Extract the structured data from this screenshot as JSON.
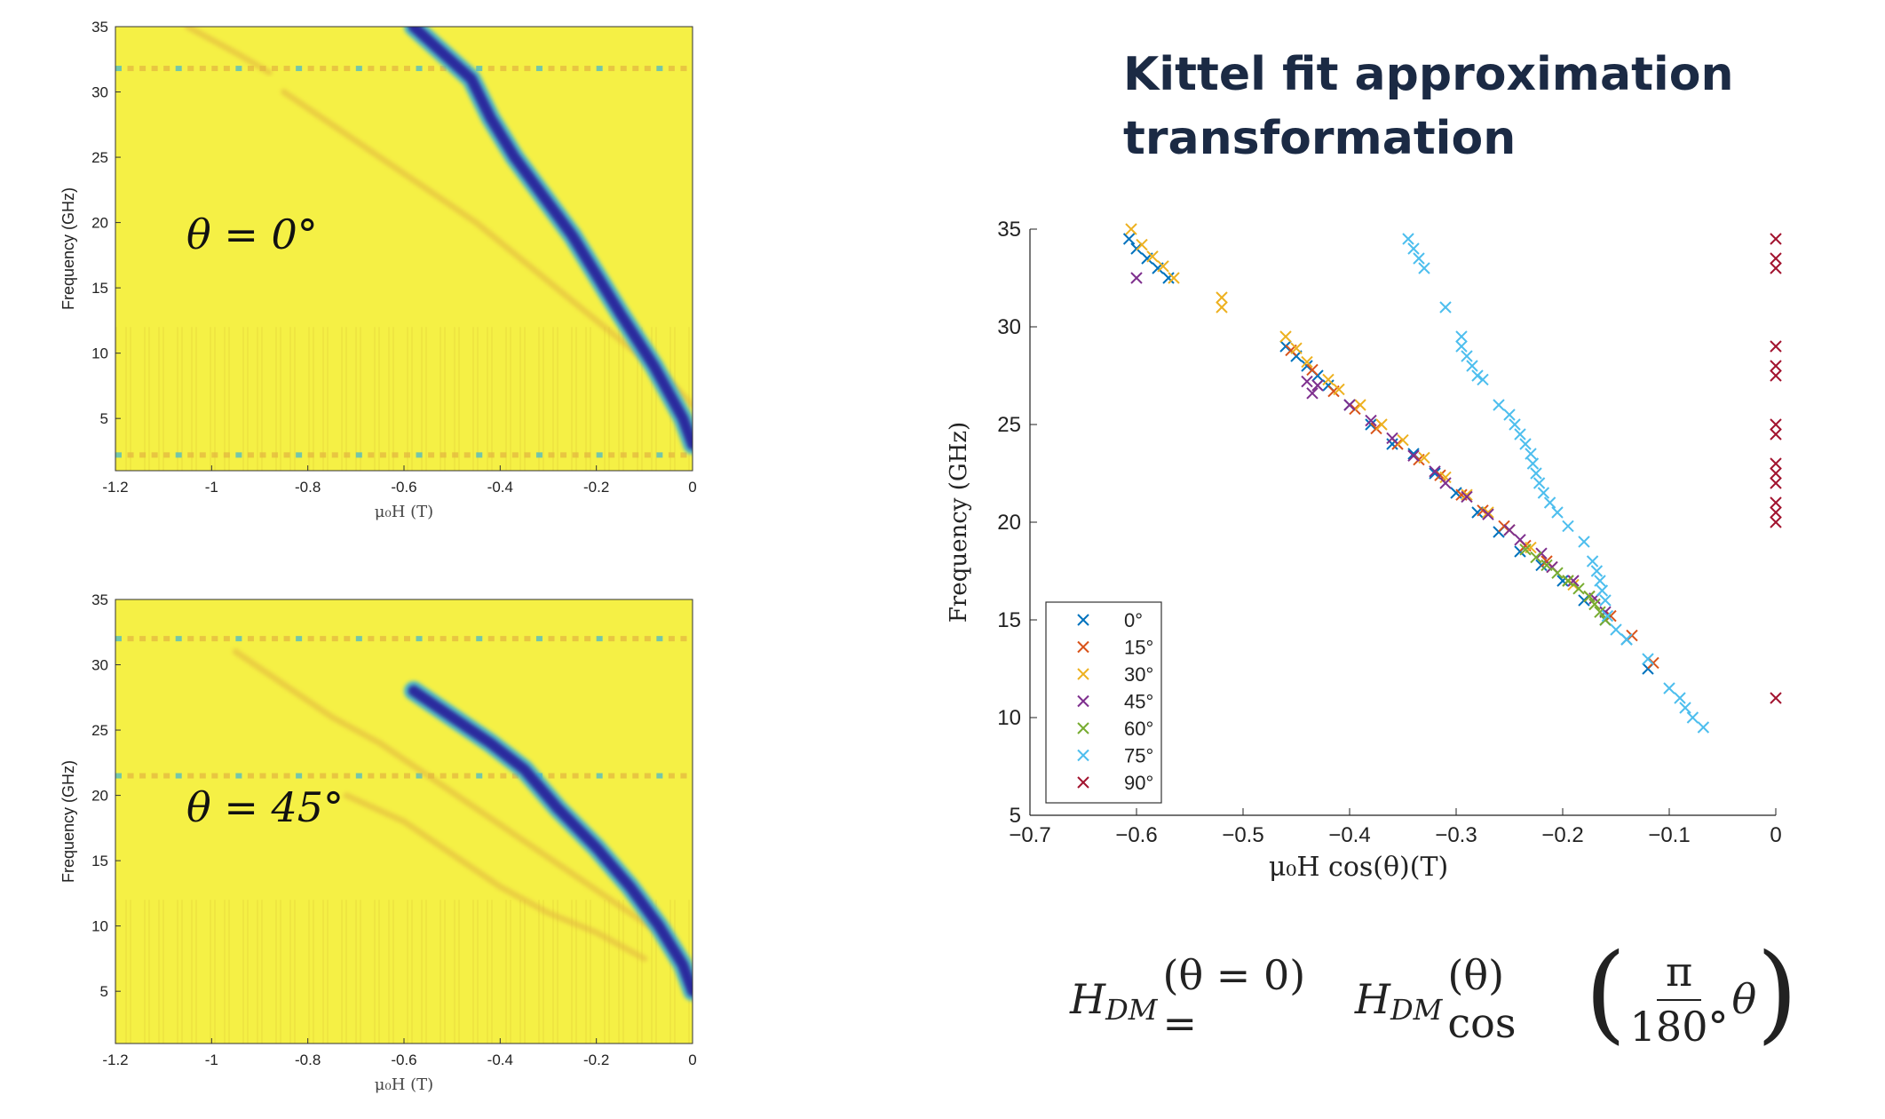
{
  "title": "Kittel fit approximation transformation",
  "formula": {
    "lhs": "H",
    "sub_lhs": "DM",
    "lhs_arg": "(θ = 0) =",
    "rhs": "H",
    "sub_rhs": "DM",
    "rhs_arg": "(θ) cos",
    "frac_num": "π",
    "frac_den": "180°",
    "frac_after": "θ",
    "paren_open": "(",
    "paren_close": ")"
  },
  "colors": {
    "heatmap_bg": "#f5f045",
    "heatmap_stripe": "#ede340",
    "heatmap_orange": "#e2b340",
    "heatmap_dark": "#2a2c9e",
    "heatmap_cyan": "#3fb4d3",
    "title": "#1b2a44"
  },
  "chart_data": [
    {
      "type": "heatmap",
      "id": "theta0",
      "annotation": "θ = 0°",
      "ylabel": "Frequency (GHz)",
      "xlabel": "μ₀H (T)",
      "xlim": [
        -1.2,
        0
      ],
      "ylim": [
        1,
        35
      ],
      "xticks": [
        "-1.2",
        "-1",
        "-0.8",
        "-0.6",
        "-0.4",
        "-0.2",
        "0"
      ],
      "yticks": [
        "5",
        "10",
        "15",
        "20",
        "25",
        "30",
        "35"
      ],
      "main_mode": [
        [
          -0.58,
          35
        ],
        [
          -0.52,
          33
        ],
        [
          -0.46,
          31
        ],
        [
          -0.42,
          28
        ],
        [
          -0.37,
          25
        ],
        [
          -0.31,
          22
        ],
        [
          -0.25,
          19
        ],
        [
          -0.2,
          16
        ],
        [
          -0.15,
          13
        ],
        [
          -0.08,
          9
        ],
        [
          -0.02,
          5
        ],
        [
          0,
          3
        ]
      ],
      "weak_mode_1": [
        [
          -0.85,
          30
        ],
        [
          -0.75,
          27.5
        ],
        [
          -0.65,
          25
        ],
        [
          -0.55,
          22.5
        ],
        [
          -0.45,
          20
        ],
        [
          -0.35,
          17
        ],
        [
          -0.25,
          14
        ],
        [
          -0.15,
          11
        ],
        [
          -0.05,
          8
        ],
        [
          0,
          6
        ]
      ],
      "weak_mode_2": [
        [
          -1.05,
          35
        ],
        [
          -0.95,
          33
        ],
        [
          -0.88,
          31.5
        ]
      ],
      "band_freq": [
        31.8,
        2.2
      ]
    },
    {
      "type": "heatmap",
      "id": "theta45",
      "annotation": "θ = 45°",
      "ylabel": "Frequency (GHz)",
      "xlabel": "μ₀H (T)",
      "xlim": [
        -1.2,
        0
      ],
      "ylim": [
        1,
        35
      ],
      "xticks": [
        "-1.2",
        "-1",
        "-0.8",
        "-0.6",
        "-0.4",
        "-0.2",
        "0"
      ],
      "yticks": [
        "5",
        "10",
        "15",
        "20",
        "25",
        "30",
        "35"
      ],
      "main_mode": [
        [
          -0.58,
          28
        ],
        [
          -0.5,
          26
        ],
        [
          -0.42,
          24
        ],
        [
          -0.35,
          22
        ],
        [
          -0.28,
          19
        ],
        [
          -0.2,
          16
        ],
        [
          -0.13,
          13
        ],
        [
          -0.07,
          10
        ],
        [
          -0.02,
          7
        ],
        [
          0,
          5
        ]
      ],
      "weak_mode_1": [
        [
          -0.95,
          31
        ],
        [
          -0.85,
          28.5
        ],
        [
          -0.75,
          26
        ],
        [
          -0.65,
          24
        ],
        [
          -0.55,
          21.5
        ],
        [
          -0.45,
          19
        ],
        [
          -0.35,
          16.5
        ],
        [
          -0.25,
          14
        ],
        [
          -0.15,
          11.5
        ],
        [
          -0.05,
          9
        ]
      ],
      "weak_mode_2": [
        [
          -0.72,
          20
        ],
        [
          -0.6,
          18
        ],
        [
          -0.5,
          15.5
        ],
        [
          -0.4,
          13
        ],
        [
          -0.3,
          11
        ],
        [
          -0.2,
          9.5
        ],
        [
          -0.1,
          7.5
        ]
      ],
      "band_freq": [
        32,
        21.5
      ]
    },
    {
      "type": "scatter",
      "id": "kittel",
      "ylabel": "Frequency (GHz)",
      "xlabel": "μ₀H  cos(θ)(T)",
      "xlim": [
        -0.7,
        0
      ],
      "ylim": [
        5,
        35
      ],
      "xticks": [
        "−0.7",
        "−0.6",
        "−0.5",
        "−0.4",
        "−0.3",
        "−0.2",
        "−0.1",
        "0"
      ],
      "yticks": [
        "5",
        "10",
        "15",
        "20",
        "25",
        "30",
        "35"
      ],
      "legend_position": "lower-left",
      "series": [
        {
          "name": "0°",
          "color": "#0072bd",
          "points": [
            [
              -0.607,
              34.5
            ],
            [
              -0.6,
              34
            ],
            [
              -0.59,
              33.5
            ],
            [
              -0.58,
              33
            ],
            [
              -0.57,
              32.5
            ],
            [
              -0.46,
              29
            ],
            [
              -0.45,
              28.5
            ],
            [
              -0.44,
              28
            ],
            [
              -0.43,
              27.5
            ],
            [
              -0.42,
              27
            ],
            [
              -0.4,
              26
            ],
            [
              -0.38,
              25
            ],
            [
              -0.36,
              24
            ],
            [
              -0.34,
              23.5
            ],
            [
              -0.32,
              22.5
            ],
            [
              -0.3,
              21.5
            ],
            [
              -0.28,
              20.5
            ],
            [
              -0.26,
              19.5
            ],
            [
              -0.24,
              18.5
            ],
            [
              -0.22,
              17.8
            ],
            [
              -0.2,
              17
            ],
            [
              -0.18,
              16
            ],
            [
              -0.16,
              15
            ],
            [
              -0.14,
              14
            ],
            [
              -0.12,
              12.5
            ]
          ]
        },
        {
          "name": "15°",
          "color": "#d95319",
          "points": [
            [
              -0.455,
              28.8
            ],
            [
              -0.435,
              27.8
            ],
            [
              -0.415,
              26.7
            ],
            [
              -0.395,
              25.8
            ],
            [
              -0.375,
              24.8
            ],
            [
              -0.355,
              24
            ],
            [
              -0.335,
              23.2
            ],
            [
              -0.315,
              22.4
            ],
            [
              -0.295,
              21.4
            ],
            [
              -0.275,
              20.6
            ],
            [
              -0.255,
              19.8
            ],
            [
              -0.235,
              18.8
            ],
            [
              -0.215,
              18
            ],
            [
              -0.195,
              17
            ],
            [
              -0.175,
              16.2
            ],
            [
              -0.155,
              15.2
            ],
            [
              -0.135,
              14.2
            ],
            [
              -0.115,
              12.8
            ]
          ]
        },
        {
          "name": "30°",
          "color": "#edb120",
          "points": [
            [
              -0.605,
              35
            ],
            [
              -0.595,
              34.2
            ],
            [
              -0.585,
              33.6
            ],
            [
              -0.575,
              33.1
            ],
            [
              -0.565,
              32.5
            ],
            [
              -0.52,
              31.5
            ],
            [
              -0.52,
              31
            ],
            [
              -0.46,
              29.5
            ],
            [
              -0.45,
              28.9
            ],
            [
              -0.44,
              28.2
            ],
            [
              -0.42,
              27.3
            ],
            [
              -0.41,
              26.8
            ],
            [
              -0.39,
              26
            ],
            [
              -0.37,
              25
            ],
            [
              -0.35,
              24.2
            ],
            [
              -0.33,
              23.3
            ],
            [
              -0.31,
              22.3
            ],
            [
              -0.29,
              21.4
            ],
            [
              -0.27,
              20.5
            ],
            [
              -0.25,
              19.6
            ],
            [
              -0.23,
              18.7
            ],
            [
              -0.21,
              17.7
            ],
            [
              -0.19,
              16.8
            ],
            [
              -0.17,
              15.8
            ]
          ]
        },
        {
          "name": "45°",
          "color": "#7e2f8e",
          "points": [
            [
              -0.6,
              32.5
            ],
            [
              -0.43,
              27
            ],
            [
              -0.435,
              26.6
            ],
            [
              -0.44,
              27.2
            ],
            [
              -0.4,
              26
            ],
            [
              -0.38,
              25.2
            ],
            [
              -0.36,
              24.3
            ],
            [
              -0.34,
              23.4
            ],
            [
              -0.32,
              22.6
            ],
            [
              -0.31,
              22
            ],
            [
              -0.29,
              21.3
            ],
            [
              -0.27,
              20.4
            ],
            [
              -0.25,
              19.6
            ],
            [
              -0.24,
              19.1
            ],
            [
              -0.22,
              18.4
            ],
            [
              -0.21,
              17.7
            ],
            [
              -0.19,
              17
            ],
            [
              -0.17,
              16.1
            ],
            [
              -0.16,
              15.4
            ]
          ]
        },
        {
          "name": "60°",
          "color": "#77ac30",
          "points": [
            [
              -0.235,
              18.6
            ],
            [
              -0.225,
              18.2
            ],
            [
              -0.215,
              17.8
            ],
            [
              -0.205,
              17.4
            ],
            [
              -0.195,
              17
            ],
            [
              -0.185,
              16.6
            ],
            [
              -0.175,
              16.2
            ],
            [
              -0.17,
              15.8
            ],
            [
              -0.165,
              15.4
            ],
            [
              -0.16,
              15
            ]
          ]
        },
        {
          "name": "75°",
          "color": "#4dbeee",
          "points": [
            [
              -0.345,
              34.5
            ],
            [
              -0.34,
              34
            ],
            [
              -0.335,
              33.5
            ],
            [
              -0.33,
              33
            ],
            [
              -0.31,
              31
            ],
            [
              -0.295,
              29.5
            ],
            [
              -0.295,
              29
            ],
            [
              -0.29,
              28.5
            ],
            [
              -0.285,
              28
            ],
            [
              -0.28,
              27.5
            ],
            [
              -0.275,
              27.3
            ],
            [
              -0.26,
              26
            ],
            [
              -0.25,
              25.5
            ],
            [
              -0.245,
              25
            ],
            [
              -0.24,
              24.5
            ],
            [
              -0.235,
              24
            ],
            [
              -0.23,
              23.5
            ],
            [
              -0.228,
              23
            ],
            [
              -0.225,
              22.5
            ],
            [
              -0.222,
              22
            ],
            [
              -0.218,
              21.5
            ],
            [
              -0.212,
              21
            ],
            [
              -0.205,
              20.5
            ],
            [
              -0.195,
              19.8
            ],
            [
              -0.18,
              19
            ],
            [
              -0.172,
              18
            ],
            [
              -0.168,
              17.5
            ],
            [
              -0.165,
              17
            ],
            [
              -0.163,
              16.5
            ],
            [
              -0.16,
              16
            ],
            [
              -0.158,
              15.2
            ],
            [
              -0.15,
              14.5
            ],
            [
              -0.14,
              14
            ],
            [
              -0.12,
              13
            ],
            [
              -0.1,
              11.5
            ],
            [
              -0.09,
              11
            ],
            [
              -0.085,
              10.5
            ],
            [
              -0.078,
              10
            ],
            [
              -0.068,
              9.5
            ]
          ]
        },
        {
          "name": "90°",
          "color": "#a2142f",
          "points": [
            [
              0,
              34.5
            ],
            [
              0,
              33.5
            ],
            [
              0,
              33
            ],
            [
              0,
              29
            ],
            [
              0,
              28
            ],
            [
              0,
              27.5
            ],
            [
              0,
              25
            ],
            [
              0,
              24.5
            ],
            [
              0,
              23
            ],
            [
              0,
              22.5
            ],
            [
              0,
              22
            ],
            [
              0,
              21
            ],
            [
              0,
              20.5
            ],
            [
              0,
              20
            ],
            [
              0,
              11
            ]
          ]
        }
      ]
    }
  ]
}
